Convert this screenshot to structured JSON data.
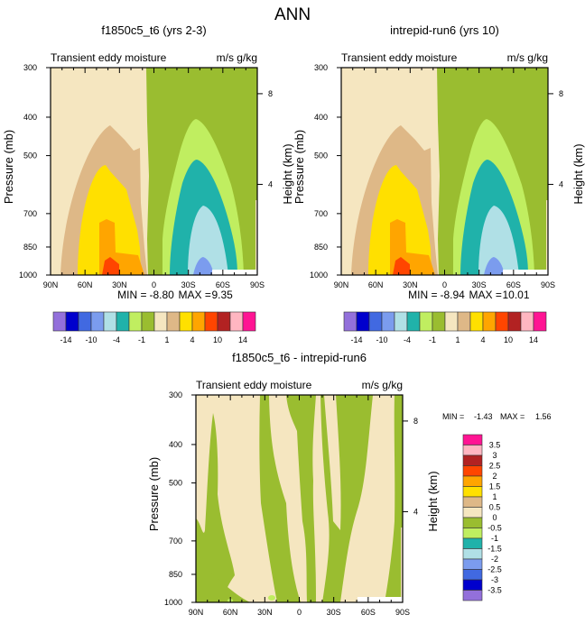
{
  "main_title": "ANN",
  "colors": {
    "levels": [
      "#9370DB",
      "#0000CD",
      "#4169E1",
      "#7B9CEE",
      "#B0E0E6",
      "#20B2AA",
      "#C0EE60",
      "#9ABD30",
      "#F5E6C0",
      "#DEB887",
      "#FFE000",
      "#FFA500",
      "#FF4500",
      "#B22222",
      "#FFB6C1",
      "#FF1493"
    ]
  },
  "chart_data": [
    {
      "type": "heatmap",
      "title": "f1850c5_t6 (yrs 2-3)",
      "left_subtitle": "Transient eddy moisture",
      "right_subtitle": "m/s g/kg",
      "ylabel": "Pressure (mb)",
      "ylabel_right": "Height (km)",
      "x_ticks": [
        "90N",
        "60N",
        "30N",
        "0",
        "30S",
        "60S",
        "90S"
      ],
      "y_ticks": [
        300,
        400,
        500,
        700,
        850,
        1000
      ],
      "y_right_ticks": [
        8,
        4
      ],
      "min_label": "MIN =",
      "min": "-8.80",
      "max_label": "MAX =",
      "max": "9.35",
      "colorbar_labels": [
        "-14",
        "-10",
        "-4",
        "-1",
        "1",
        "4",
        "10",
        "14"
      ]
    },
    {
      "type": "heatmap",
      "title": "intrepid-run6 (yrs 10)",
      "left_subtitle": "Transient eddy moisture",
      "right_subtitle": "m/s g/kg",
      "ylabel": "Pressure (mb)",
      "ylabel_right": "Height (km)",
      "x_ticks": [
        "90N",
        "60N",
        "30N",
        "0",
        "30S",
        "60S",
        "90S"
      ],
      "y_ticks": [
        300,
        400,
        500,
        700,
        850,
        1000
      ],
      "y_right_ticks": [
        8,
        4
      ],
      "min_label": "MIN =",
      "min": "-8.94",
      "max_label": "MAX =",
      "max": "10.01",
      "colorbar_labels": [
        "-14",
        "-10",
        "-4",
        "-1",
        "1",
        "4",
        "10",
        "14"
      ]
    },
    {
      "type": "heatmap",
      "title": "f1850c5_t6 - intrepid-run6",
      "left_subtitle": "Transient eddy moisture",
      "right_subtitle": "m/s g/kg",
      "ylabel": "Pressure (mb)",
      "ylabel_right": "Height (km)",
      "x_ticks": [
        "90N",
        "60N",
        "30N",
        "0",
        "30S",
        "60S",
        "90S"
      ],
      "y_ticks": [
        300,
        400,
        500,
        700,
        850,
        1000
      ],
      "y_right_ticks": [
        8,
        4
      ],
      "min_label": "MIN =",
      "min": "-1.43",
      "max_label": "MAX =",
      "max": "1.56",
      "colorbar_labels": [
        "3.5",
        "3",
        "2.5",
        "2",
        "1.5",
        "1",
        "0.5",
        "0",
        "-0.5",
        "-1",
        "-1.5",
        "-2",
        "-2.5",
        "-3",
        "-3.5"
      ]
    }
  ]
}
